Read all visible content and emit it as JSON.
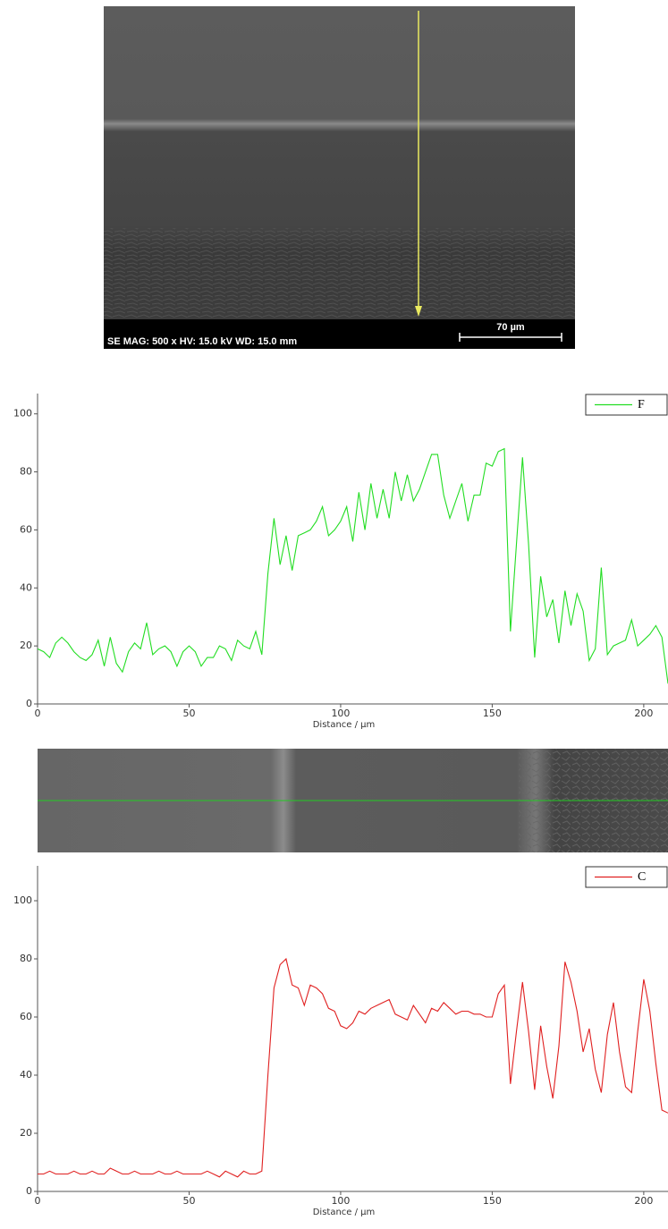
{
  "sem_image": {
    "info": "SE  MAG: 500 x  HV: 15.0 kV  WD: 15.0 mm",
    "scale_bar": "70 µm"
  },
  "chart_data": [
    {
      "type": "line",
      "x_label": "Distance / µm",
      "x": [
        0,
        2,
        4,
        6,
        8,
        10,
        12,
        14,
        16,
        18,
        20,
        22,
        24,
        26,
        28,
        30,
        32,
        34,
        36,
        38,
        40,
        42,
        44,
        46,
        48,
        50,
        52,
        54,
        56,
        58,
        60,
        62,
        64,
        66,
        68,
        70,
        72,
        74,
        76,
        78,
        80,
        82,
        84,
        86,
        88,
        90,
        92,
        94,
        96,
        98,
        100,
        102,
        104,
        106,
        108,
        110,
        112,
        114,
        116,
        118,
        120,
        122,
        124,
        126,
        128,
        130,
        132,
        134,
        136,
        138,
        140,
        142,
        144,
        146,
        148,
        150,
        152,
        154,
        156,
        158,
        160,
        162,
        164,
        166,
        168,
        170,
        172,
        174,
        176,
        178,
        180,
        182,
        184,
        186,
        188,
        190,
        192,
        194,
        196,
        198,
        200,
        202,
        204,
        206,
        208
      ],
      "series": [
        {
          "name": "F",
          "color": "#22dd22",
          "values": [
            19,
            18,
            16,
            21,
            23,
            21,
            18,
            16,
            15,
            17,
            22,
            13,
            23,
            14,
            11,
            18,
            21,
            19,
            28,
            17,
            19,
            20,
            18,
            13,
            18,
            20,
            18,
            13,
            16,
            16,
            20,
            19,
            15,
            22,
            20,
            19,
            25,
            17,
            45,
            64,
            48,
            58,
            46,
            58,
            59,
            60,
            63,
            68,
            58,
            60,
            63,
            68,
            56,
            73,
            60,
            76,
            64,
            74,
            64,
            80,
            70,
            79,
            70,
            74,
            80,
            86,
            86,
            72,
            64,
            70,
            76,
            63,
            72,
            72,
            83,
            82,
            87,
            88,
            25,
            55,
            85,
            55,
            16,
            44,
            30,
            36,
            21,
            39,
            27,
            38,
            32,
            15,
            19,
            47,
            17,
            20,
            21,
            22,
            29,
            20,
            22,
            24,
            27,
            23,
            7
          ]
        }
      ],
      "xlim": [
        0,
        208
      ],
      "xticks": [
        0,
        50,
        100,
        150,
        200
      ],
      "ylim": [
        0,
        107
      ],
      "yticks": [
        0,
        20,
        40,
        60,
        80,
        100
      ],
      "legend": "top-right"
    },
    {
      "type": "line",
      "x_label": "Distance / µm",
      "x": [
        0,
        2,
        4,
        6,
        8,
        10,
        12,
        14,
        16,
        18,
        20,
        22,
        24,
        26,
        28,
        30,
        32,
        34,
        36,
        38,
        40,
        42,
        44,
        46,
        48,
        50,
        52,
        54,
        56,
        58,
        60,
        62,
        64,
        66,
        68,
        70,
        72,
        74,
        76,
        78,
        80,
        82,
        84,
        86,
        88,
        90,
        92,
        94,
        96,
        98,
        100,
        102,
        104,
        106,
        108,
        110,
        112,
        114,
        116,
        118,
        120,
        122,
        124,
        126,
        128,
        130,
        132,
        134,
        136,
        138,
        140,
        142,
        144,
        146,
        148,
        150,
        152,
        154,
        156,
        158,
        160,
        162,
        164,
        166,
        168,
        170,
        172,
        174,
        176,
        178,
        180,
        182,
        184,
        186,
        188,
        190,
        192,
        194,
        196,
        198,
        200,
        202,
        204,
        206,
        208
      ],
      "series": [
        {
          "name": "C",
          "color": "#e02020",
          "values": [
            6,
            6,
            7,
            6,
            6,
            6,
            7,
            6,
            6,
            7,
            6,
            6,
            8,
            7,
            6,
            6,
            7,
            6,
            6,
            6,
            7,
            6,
            6,
            7,
            6,
            6,
            6,
            6,
            7,
            6,
            5,
            7,
            6,
            5,
            7,
            6,
            6,
            7,
            40,
            70,
            78,
            80,
            71,
            70,
            64,
            71,
            70,
            68,
            63,
            62,
            57,
            56,
            58,
            62,
            61,
            63,
            64,
            65,
            66,
            61,
            60,
            59,
            64,
            61,
            58,
            63,
            62,
            65,
            63,
            61,
            62,
            62,
            61,
            61,
            60,
            60,
            68,
            71,
            37,
            55,
            72,
            55,
            35,
            57,
            43,
            32,
            50,
            79,
            72,
            62,
            48,
            56,
            42,
            34,
            54,
            65,
            48,
            36,
            34,
            55,
            73,
            62,
            44,
            28,
            27
          ]
        }
      ],
      "xlim": [
        0,
        208
      ],
      "xticks": [
        0,
        50,
        100,
        150,
        200
      ],
      "ylim": [
        0,
        112
      ],
      "yticks": [
        0,
        20,
        40,
        60,
        80,
        100
      ],
      "legend": "top-right"
    }
  ]
}
